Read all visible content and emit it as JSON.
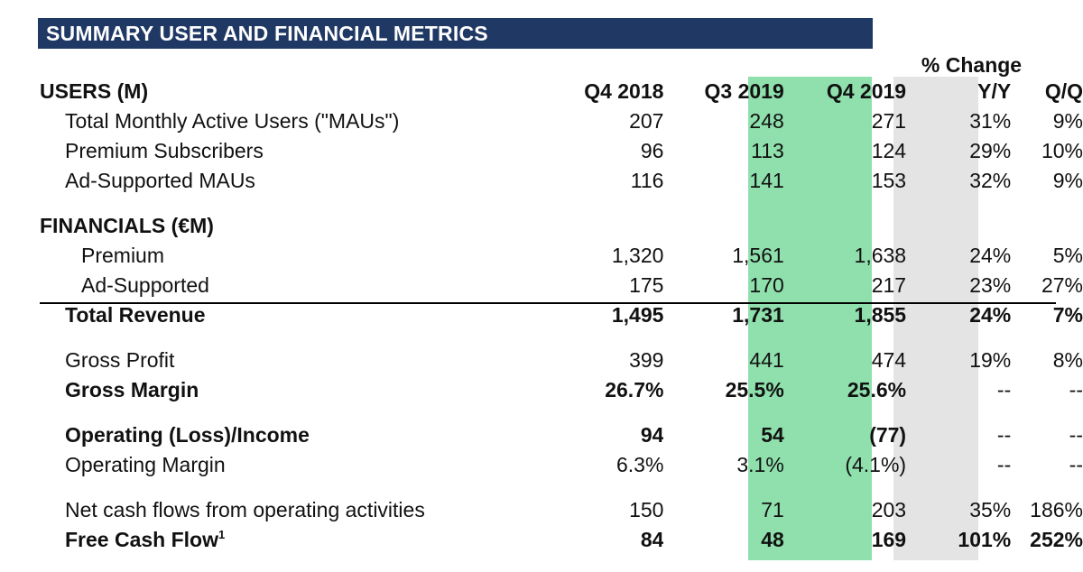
{
  "title": "SUMMARY USER AND FINANCIAL METRICS",
  "pct_change_label": "% Change",
  "columns": {
    "section": "USERS (M)",
    "q4_2018": "Q4 2018",
    "q3_2019": "Q3 2019",
    "q4_2019": "Q4 2019",
    "yy": "Y/Y",
    "qq": "Q/Q"
  },
  "users": [
    {
      "label": "Total Monthly Active Users (\"MAUs\")",
      "q4_2018": "207",
      "q3_2019": "248",
      "q4_2019": "271",
      "yy": "31%",
      "qq": "9%"
    },
    {
      "label": "Premium Subscribers",
      "q4_2018": "96",
      "q3_2019": "113",
      "q4_2019": "124",
      "yy": "29%",
      "qq": "10%"
    },
    {
      "label": "Ad-Supported MAUs",
      "q4_2018": "116",
      "q3_2019": "141",
      "q4_2019": "153",
      "yy": "32%",
      "qq": "9%"
    }
  ],
  "financials_label": "FINANCIALS (€M)",
  "financials": {
    "premium": {
      "label": "Premium",
      "q4_2018": "1,320",
      "q3_2019": "1,561",
      "q4_2019": "1,638",
      "yy": "24%",
      "qq": "5%"
    },
    "ad_supported": {
      "label": "Ad-Supported",
      "q4_2018": "175",
      "q3_2019": "170",
      "q4_2019": "217",
      "yy": "23%",
      "qq": "27%"
    },
    "total_revenue": {
      "label": "Total Revenue",
      "q4_2018": "1,495",
      "q3_2019": "1,731",
      "q4_2019": "1,855",
      "yy": "24%",
      "qq": "7%"
    },
    "gross_profit": {
      "label": "Gross Profit",
      "q4_2018": "399",
      "q3_2019": "441",
      "q4_2019": "474",
      "yy": "19%",
      "qq": "8%"
    },
    "gross_margin": {
      "label": "Gross Margin",
      "q4_2018": "26.7%",
      "q3_2019": "25.5%",
      "q4_2019": "25.6%",
      "yy": "--",
      "qq": "--"
    },
    "operating_income": {
      "label": "Operating (Loss)/Income",
      "q4_2018": "94",
      "q3_2019": "54",
      "q4_2019": "(77)",
      "yy": "--",
      "qq": "--"
    },
    "operating_margin": {
      "label": "Operating Margin",
      "q4_2018": "6.3%",
      "q3_2019": "3.1%",
      "q4_2019": "(4.1%)",
      "yy": "--",
      "qq": "--"
    },
    "net_cash_flows": {
      "label": "Net cash flows from operating activities",
      "q4_2018": "150",
      "q3_2019": "71",
      "q4_2019": "203",
      "yy": "35%",
      "qq": "186%"
    },
    "free_cash_flow": {
      "label": "Free Cash Flow",
      "footnote": "1",
      "q4_2018": "84",
      "q3_2019": "48",
      "q4_2019": "169",
      "yy": "101%",
      "qq": "252%"
    }
  },
  "colors": {
    "header_bg": "#1f3864",
    "highlight_q4_2019": "#8fe0ad",
    "highlight_yy": "#e4e4e4"
  }
}
